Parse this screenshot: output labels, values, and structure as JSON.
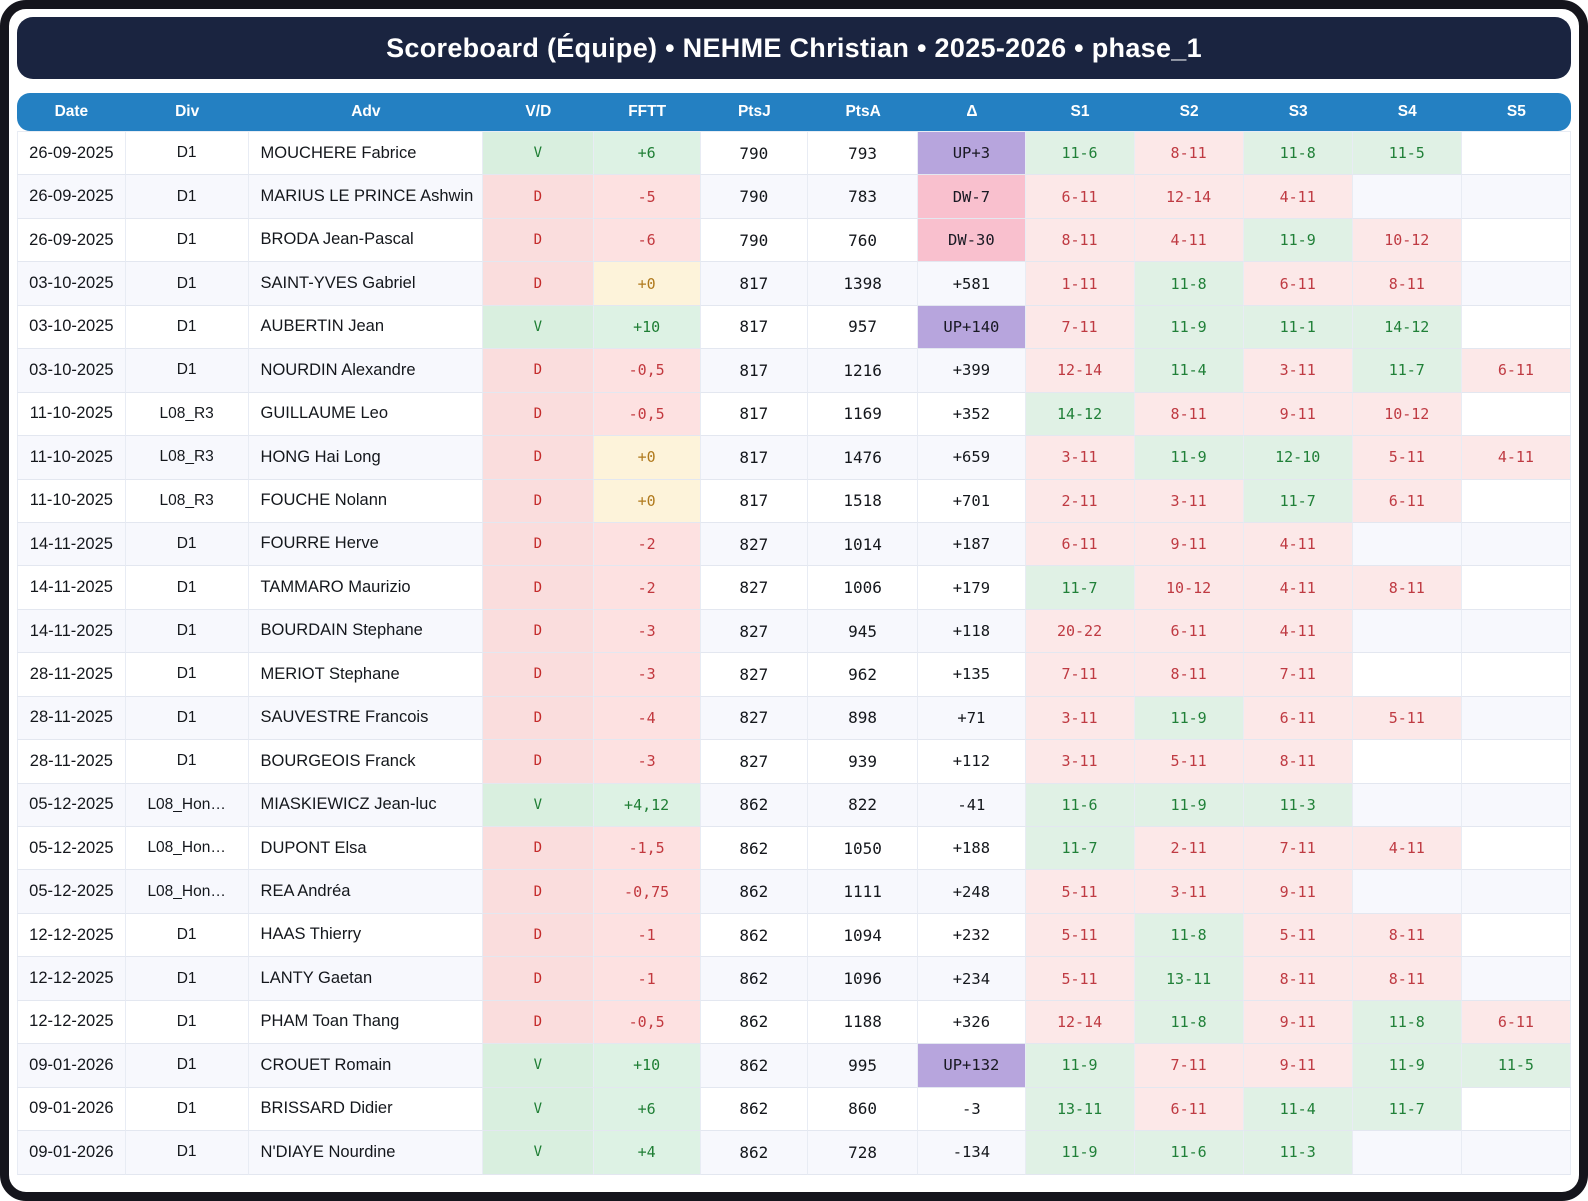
{
  "title": "Scoreboard (Équipe) • NEHME Christian • 2025-2026 • phase_1",
  "colors": {
    "navy": "#1a2440",
    "header_blue": "#2480c2",
    "win_bg": "#d9efdf",
    "win_text": "#1e7e34",
    "loss_bg": "#fadddd",
    "loss_text": "#c42b2b",
    "zero_bg": "#fdf3da",
    "zero_text": "#b0791c",
    "up_bg": "#b7a5dd",
    "down_bg": "#f9c0ce"
  },
  "table": {
    "columns": [
      "Date",
      "Div",
      "Adv",
      "V/D",
      "FFTT",
      "PtsJ",
      "PtsA",
      "Δ",
      "S1",
      "S2",
      "S3",
      "S4",
      "S5"
    ],
    "rows": [
      {
        "date": "26-09-2025",
        "div": "D1",
        "adv": "MOUCHERE Fabrice",
        "vd": "V",
        "fftt": "+6",
        "fftt_type": "win",
        "ptsj": "790",
        "ptsa": "793",
        "delta": "UP+3",
        "delta_type": "up",
        "sets": [
          {
            "score": "11-6",
            "result": "w"
          },
          {
            "score": "8-11",
            "result": "l"
          },
          {
            "score": "11-8",
            "result": "w"
          },
          {
            "score": "11-5",
            "result": "w"
          },
          null
        ]
      },
      {
        "date": "26-09-2025",
        "div": "D1",
        "adv": "MARIUS LE PRINCE Ashwin",
        "vd": "D",
        "fftt": "-5",
        "fftt_type": "loss",
        "ptsj": "790",
        "ptsa": "783",
        "delta": "DW-7",
        "delta_type": "down",
        "sets": [
          {
            "score": "6-11",
            "result": "l"
          },
          {
            "score": "12-14",
            "result": "l"
          },
          {
            "score": "4-11",
            "result": "l"
          },
          null,
          null
        ]
      },
      {
        "date": "26-09-2025",
        "div": "D1",
        "adv": "BRODA Jean-Pascal",
        "vd": "D",
        "fftt": "-6",
        "fftt_type": "loss",
        "ptsj": "790",
        "ptsa": "760",
        "delta": "DW-30",
        "delta_type": "down",
        "sets": [
          {
            "score": "8-11",
            "result": "l"
          },
          {
            "score": "4-11",
            "result": "l"
          },
          {
            "score": "11-9",
            "result": "w"
          },
          {
            "score": "10-12",
            "result": "l"
          },
          null
        ]
      },
      {
        "date": "03-10-2025",
        "div": "D1",
        "adv": "SAINT-YVES Gabriel",
        "vd": "D",
        "fftt": "+0",
        "fftt_type": "zero",
        "ptsj": "817",
        "ptsa": "1398",
        "delta": "+581",
        "delta_type": "plain",
        "sets": [
          {
            "score": "1-11",
            "result": "l"
          },
          {
            "score": "11-8",
            "result": "w"
          },
          {
            "score": "6-11",
            "result": "l"
          },
          {
            "score": "8-11",
            "result": "l"
          },
          null
        ]
      },
      {
        "date": "03-10-2025",
        "div": "D1",
        "adv": "AUBERTIN Jean",
        "vd": "V",
        "fftt": "+10",
        "fftt_type": "win",
        "ptsj": "817",
        "ptsa": "957",
        "delta": "UP+140",
        "delta_type": "up",
        "sets": [
          {
            "score": "7-11",
            "result": "l"
          },
          {
            "score": "11-9",
            "result": "w"
          },
          {
            "score": "11-1",
            "result": "w"
          },
          {
            "score": "14-12",
            "result": "w"
          },
          null
        ]
      },
      {
        "date": "03-10-2025",
        "div": "D1",
        "adv": "NOURDIN Alexandre",
        "vd": "D",
        "fftt": "-0,5",
        "fftt_type": "loss",
        "ptsj": "817",
        "ptsa": "1216",
        "delta": "+399",
        "delta_type": "plain",
        "sets": [
          {
            "score": "12-14",
            "result": "l"
          },
          {
            "score": "11-4",
            "result": "w"
          },
          {
            "score": "3-11",
            "result": "l"
          },
          {
            "score": "11-7",
            "result": "w"
          },
          {
            "score": "6-11",
            "result": "l"
          }
        ]
      },
      {
        "date": "11-10-2025",
        "div": "L08_R3",
        "adv": "GUILLAUME Leo",
        "vd": "D",
        "fftt": "-0,5",
        "fftt_type": "loss",
        "ptsj": "817",
        "ptsa": "1169",
        "delta": "+352",
        "delta_type": "plain",
        "sets": [
          {
            "score": "14-12",
            "result": "w"
          },
          {
            "score": "8-11",
            "result": "l"
          },
          {
            "score": "9-11",
            "result": "l"
          },
          {
            "score": "10-12",
            "result": "l"
          },
          null
        ]
      },
      {
        "date": "11-10-2025",
        "div": "L08_R3",
        "adv": "HONG Hai Long",
        "vd": "D",
        "fftt": "+0",
        "fftt_type": "zero",
        "ptsj": "817",
        "ptsa": "1476",
        "delta": "+659",
        "delta_type": "plain",
        "sets": [
          {
            "score": "3-11",
            "result": "l"
          },
          {
            "score": "11-9",
            "result": "w"
          },
          {
            "score": "12-10",
            "result": "w"
          },
          {
            "score": "5-11",
            "result": "l"
          },
          {
            "score": "4-11",
            "result": "l"
          }
        ]
      },
      {
        "date": "11-10-2025",
        "div": "L08_R3",
        "adv": "FOUCHE Nolann",
        "vd": "D",
        "fftt": "+0",
        "fftt_type": "zero",
        "ptsj": "817",
        "ptsa": "1518",
        "delta": "+701",
        "delta_type": "plain",
        "sets": [
          {
            "score": "2-11",
            "result": "l"
          },
          {
            "score": "3-11",
            "result": "l"
          },
          {
            "score": "11-7",
            "result": "w"
          },
          {
            "score": "6-11",
            "result": "l"
          },
          null
        ]
      },
      {
        "date": "14-11-2025",
        "div": "D1",
        "adv": "FOURRE Herve",
        "vd": "D",
        "fftt": "-2",
        "fftt_type": "loss",
        "ptsj": "827",
        "ptsa": "1014",
        "delta": "+187",
        "delta_type": "plain",
        "sets": [
          {
            "score": "6-11",
            "result": "l"
          },
          {
            "score": "9-11",
            "result": "l"
          },
          {
            "score": "4-11",
            "result": "l"
          },
          null,
          null
        ]
      },
      {
        "date": "14-11-2025",
        "div": "D1",
        "adv": "TAMMARO Maurizio",
        "vd": "D",
        "fftt": "-2",
        "fftt_type": "loss",
        "ptsj": "827",
        "ptsa": "1006",
        "delta": "+179",
        "delta_type": "plain",
        "sets": [
          {
            "score": "11-7",
            "result": "w"
          },
          {
            "score": "10-12",
            "result": "l"
          },
          {
            "score": "4-11",
            "result": "l"
          },
          {
            "score": "8-11",
            "result": "l"
          },
          null
        ]
      },
      {
        "date": "14-11-2025",
        "div": "D1",
        "adv": "BOURDAIN Stephane",
        "vd": "D",
        "fftt": "-3",
        "fftt_type": "loss",
        "ptsj": "827",
        "ptsa": "945",
        "delta": "+118",
        "delta_type": "plain",
        "sets": [
          {
            "score": "20-22",
            "result": "l"
          },
          {
            "score": "6-11",
            "result": "l"
          },
          {
            "score": "4-11",
            "result": "l"
          },
          null,
          null
        ]
      },
      {
        "date": "28-11-2025",
        "div": "D1",
        "adv": "MERIOT Stephane",
        "vd": "D",
        "fftt": "-3",
        "fftt_type": "loss",
        "ptsj": "827",
        "ptsa": "962",
        "delta": "+135",
        "delta_type": "plain",
        "sets": [
          {
            "score": "7-11",
            "result": "l"
          },
          {
            "score": "8-11",
            "result": "l"
          },
          {
            "score": "7-11",
            "result": "l"
          },
          null,
          null
        ]
      },
      {
        "date": "28-11-2025",
        "div": "D1",
        "adv": "SAUVESTRE Francois",
        "vd": "D",
        "fftt": "-4",
        "fftt_type": "loss",
        "ptsj": "827",
        "ptsa": "898",
        "delta": "+71",
        "delta_type": "plain",
        "sets": [
          {
            "score": "3-11",
            "result": "l"
          },
          {
            "score": "11-9",
            "result": "w"
          },
          {
            "score": "6-11",
            "result": "l"
          },
          {
            "score": "5-11",
            "result": "l"
          },
          null
        ]
      },
      {
        "date": "28-11-2025",
        "div": "D1",
        "adv": "BOURGEOIS Franck",
        "vd": "D",
        "fftt": "-3",
        "fftt_type": "loss",
        "ptsj": "827",
        "ptsa": "939",
        "delta": "+112",
        "delta_type": "plain",
        "sets": [
          {
            "score": "3-11",
            "result": "l"
          },
          {
            "score": "5-11",
            "result": "l"
          },
          {
            "score": "8-11",
            "result": "l"
          },
          null,
          null
        ]
      },
      {
        "date": "05-12-2025",
        "div": "L08_Hon…",
        "adv": "MIASKIEWICZ Jean-luc",
        "vd": "V",
        "fftt": "+4,12",
        "fftt_type": "win",
        "ptsj": "862",
        "ptsa": "822",
        "delta": "-41",
        "delta_type": "plain",
        "sets": [
          {
            "score": "11-6",
            "result": "w"
          },
          {
            "score": "11-9",
            "result": "w"
          },
          {
            "score": "11-3",
            "result": "w"
          },
          null,
          null
        ]
      },
      {
        "date": "05-12-2025",
        "div": "L08_Hon…",
        "adv": "DUPONT Elsa",
        "vd": "D",
        "fftt": "-1,5",
        "fftt_type": "loss",
        "ptsj": "862",
        "ptsa": "1050",
        "delta": "+188",
        "delta_type": "plain",
        "sets": [
          {
            "score": "11-7",
            "result": "w"
          },
          {
            "score": "2-11",
            "result": "l"
          },
          {
            "score": "7-11",
            "result": "l"
          },
          {
            "score": "4-11",
            "result": "l"
          },
          null
        ]
      },
      {
        "date": "05-12-2025",
        "div": "L08_Hon…",
        "adv": "REA Andréa",
        "vd": "D",
        "fftt": "-0,75",
        "fftt_type": "loss",
        "ptsj": "862",
        "ptsa": "1111",
        "delta": "+248",
        "delta_type": "plain",
        "sets": [
          {
            "score": "5-11",
            "result": "l"
          },
          {
            "score": "3-11",
            "result": "l"
          },
          {
            "score": "9-11",
            "result": "l"
          },
          null,
          null
        ]
      },
      {
        "date": "12-12-2025",
        "div": "D1",
        "adv": "HAAS Thierry",
        "vd": "D",
        "fftt": "-1",
        "fftt_type": "loss",
        "ptsj": "862",
        "ptsa": "1094",
        "delta": "+232",
        "delta_type": "plain",
        "sets": [
          {
            "score": "5-11",
            "result": "l"
          },
          {
            "score": "11-8",
            "result": "w"
          },
          {
            "score": "5-11",
            "result": "l"
          },
          {
            "score": "8-11",
            "result": "l"
          },
          null
        ]
      },
      {
        "date": "12-12-2025",
        "div": "D1",
        "adv": "LANTY Gaetan",
        "vd": "D",
        "fftt": "-1",
        "fftt_type": "loss",
        "ptsj": "862",
        "ptsa": "1096",
        "delta": "+234",
        "delta_type": "plain",
        "sets": [
          {
            "score": "5-11",
            "result": "l"
          },
          {
            "score": "13-11",
            "result": "w"
          },
          {
            "score": "8-11",
            "result": "l"
          },
          {
            "score": "8-11",
            "result": "l"
          },
          null
        ]
      },
      {
        "date": "12-12-2025",
        "div": "D1",
        "adv": "PHAM Toan Thang",
        "vd": "D",
        "fftt": "-0,5",
        "fftt_type": "loss",
        "ptsj": "862",
        "ptsa": "1188",
        "delta": "+326",
        "delta_type": "plain",
        "sets": [
          {
            "score": "12-14",
            "result": "l"
          },
          {
            "score": "11-8",
            "result": "w"
          },
          {
            "score": "9-11",
            "result": "l"
          },
          {
            "score": "11-8",
            "result": "w"
          },
          {
            "score": "6-11",
            "result": "l"
          }
        ]
      },
      {
        "date": "09-01-2026",
        "div": "D1",
        "adv": "CROUET Romain",
        "vd": "V",
        "fftt": "+10",
        "fftt_type": "win",
        "ptsj": "862",
        "ptsa": "995",
        "delta": "UP+132",
        "delta_type": "up",
        "sets": [
          {
            "score": "11-9",
            "result": "w"
          },
          {
            "score": "7-11",
            "result": "l"
          },
          {
            "score": "9-11",
            "result": "l"
          },
          {
            "score": "11-9",
            "result": "w"
          },
          {
            "score": "11-5",
            "result": "w"
          }
        ]
      },
      {
        "date": "09-01-2026",
        "div": "D1",
        "adv": "BRISSARD Didier",
        "vd": "V",
        "fftt": "+6",
        "fftt_type": "win",
        "ptsj": "862",
        "ptsa": "860",
        "delta": "-3",
        "delta_type": "plain",
        "sets": [
          {
            "score": "13-11",
            "result": "w"
          },
          {
            "score": "6-11",
            "result": "l"
          },
          {
            "score": "11-4",
            "result": "w"
          },
          {
            "score": "11-7",
            "result": "w"
          },
          null
        ]
      },
      {
        "date": "09-01-2026",
        "div": "D1",
        "adv": "N'DIAYE Nourdine",
        "vd": "V",
        "fftt": "+4",
        "fftt_type": "win",
        "ptsj": "862",
        "ptsa": "728",
        "delta": "-134",
        "delta_type": "plain",
        "sets": [
          {
            "score": "11-9",
            "result": "w"
          },
          {
            "score": "11-6",
            "result": "w"
          },
          {
            "score": "11-3",
            "result": "w"
          },
          null,
          null
        ]
      }
    ]
  }
}
